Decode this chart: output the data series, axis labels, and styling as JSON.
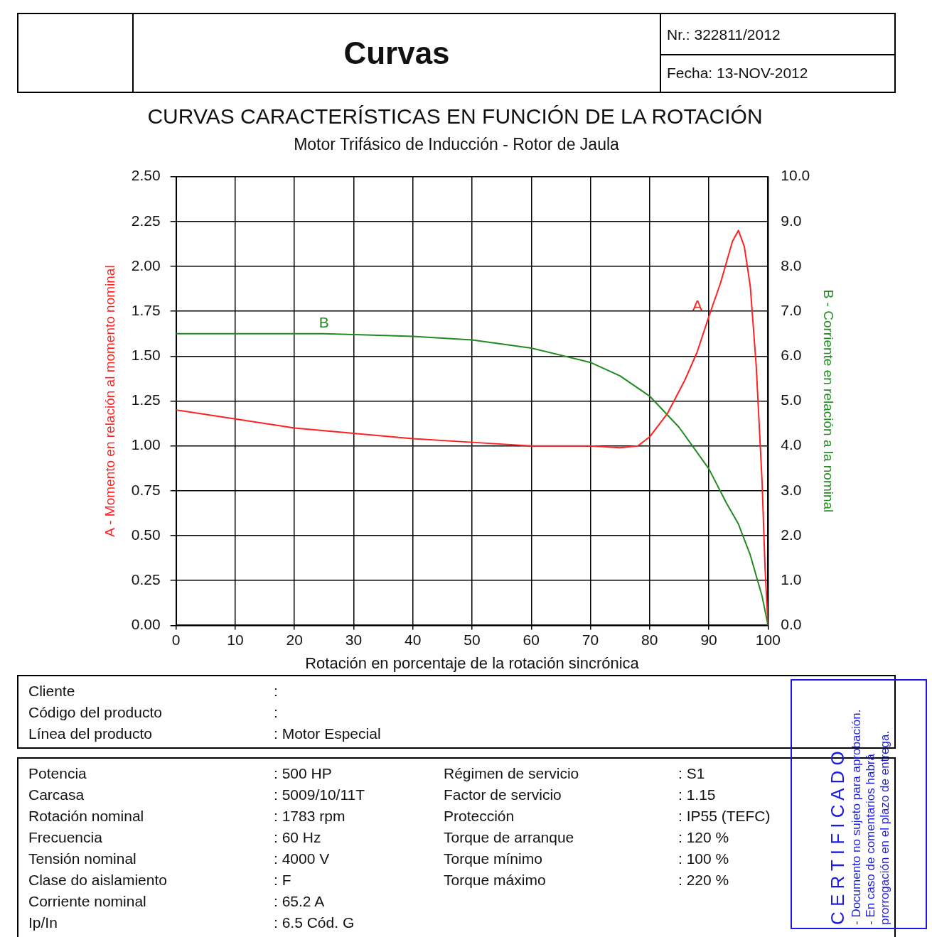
{
  "chart_data": {
    "type": "line",
    "title": "CURVAS CARACTERÍSTICAS EN FUNCIÓN DE LA ROTACIÓN",
    "subtitle": "Motor Trifásico de Inducción - Rotor de Jaula",
    "xlabel": "Rotación en porcentaje de la rotación sincrónica",
    "ylabel": "A - Momento en relación al momento nominal",
    "y2label": "B - Corriente en relación a la nominal",
    "series": [
      {
        "name": "A",
        "color": "#ff2020",
        "x": [
          0,
          10,
          20,
          30,
          40,
          50,
          60,
          70,
          75,
          78,
          80,
          83,
          86,
          88,
          90,
          92,
          94,
          95,
          96,
          97,
          98,
          99,
          99.5,
          100
        ],
        "values": [
          1.2,
          1.15,
          1.1,
          1.07,
          1.04,
          1.02,
          1.0,
          1.0,
          0.99,
          1.0,
          1.05,
          1.18,
          1.37,
          1.52,
          1.72,
          1.91,
          2.14,
          2.2,
          2.11,
          1.89,
          1.45,
          0.8,
          0.32,
          0
        ]
      },
      {
        "name": "B",
        "color": "#218a21",
        "axis": "y2",
        "x": [
          0,
          10,
          20,
          25,
          30,
          40,
          50,
          60,
          70,
          75,
          80,
          85,
          90,
          93,
          95,
          97,
          99,
          100
        ],
        "values": [
          6.5,
          6.5,
          6.5,
          6.5,
          6.48,
          6.44,
          6.36,
          6.18,
          5.86,
          5.56,
          5.11,
          4.41,
          3.49,
          2.72,
          2.26,
          1.57,
          0.65,
          0
        ]
      }
    ],
    "xlim": [
      0,
      100
    ],
    "xticks": [
      0,
      10,
      20,
      30,
      40,
      50,
      60,
      70,
      80,
      90,
      100
    ],
    "ylim": [
      0,
      2.5
    ],
    "yticks": [
      {
        "value": 0,
        "label": "0.00"
      },
      {
        "value": 0.25,
        "label": "0.25"
      },
      {
        "value": 0.5,
        "label": "0.50"
      },
      {
        "value": 0.75,
        "label": "0.75"
      },
      {
        "value": 1,
        "label": "1.00"
      },
      {
        "value": 1.25,
        "label": "1.25"
      },
      {
        "value": 1.5,
        "label": "1.50"
      },
      {
        "value": 1.75,
        "label": "1.75"
      },
      {
        "value": 2,
        "label": "2.00"
      },
      {
        "value": 2.25,
        "label": "2.25"
      },
      {
        "value": 2.5,
        "label": "2.50"
      }
    ],
    "y2lim": [
      0,
      10
    ],
    "y2ticks": [
      {
        "value": 0,
        "label": "0.0"
      },
      {
        "value": 1,
        "label": "1.0"
      },
      {
        "value": 2,
        "label": "2.0"
      },
      {
        "value": 3,
        "label": "3.0"
      },
      {
        "value": 4,
        "label": "4.0"
      },
      {
        "value": 5,
        "label": "5.0"
      },
      {
        "value": 6,
        "label": "6.0"
      },
      {
        "value": 7,
        "label": "7.0"
      },
      {
        "value": 8,
        "label": "8.0"
      },
      {
        "value": 9,
        "label": "9.0"
      },
      {
        "value": 10,
        "label": "10.0"
      }
    ],
    "grid": true,
    "marker": "none",
    "line_style": "solid",
    "annotations": [
      "Curvas",
      "Nr.:  322811/2012",
      "Fecha:  13-NOV-2012",
      "Cliente",
      ":",
      "Código del producto",
      ":",
      "Línea del producto",
      ":  Motor Especial",
      "Potencia",
      ":  500 HP",
      "Carcasa",
      ":  5009/10/11T",
      "Rotación nominal",
      ":  1783 rpm",
      "Frecuencia",
      ":  60 Hz",
      "Tensión nominal",
      ":  4000 V",
      "Clase do aislamiento",
      ":  F",
      "Corriente nominal",
      ":  65.2 A",
      "Ip/In",
      ":  6.5   Cód. G",
      "Régimen de servicio",
      ":  S1",
      "Factor de servicio",
      ":  1.15",
      "Protección",
      ":  IP55 (TEFC)",
      "Torque de arranque",
      ":  120 %",
      "Torque mínimo",
      ":  100 %",
      "Torque máximo",
      ":  220 %",
      "C E R T I F I C A D O",
      "- Documento no sujeto para aprobación.",
      "- En caso de comentarios habrá prorrogación en el plazo de entrega."
    ]
  }
}
